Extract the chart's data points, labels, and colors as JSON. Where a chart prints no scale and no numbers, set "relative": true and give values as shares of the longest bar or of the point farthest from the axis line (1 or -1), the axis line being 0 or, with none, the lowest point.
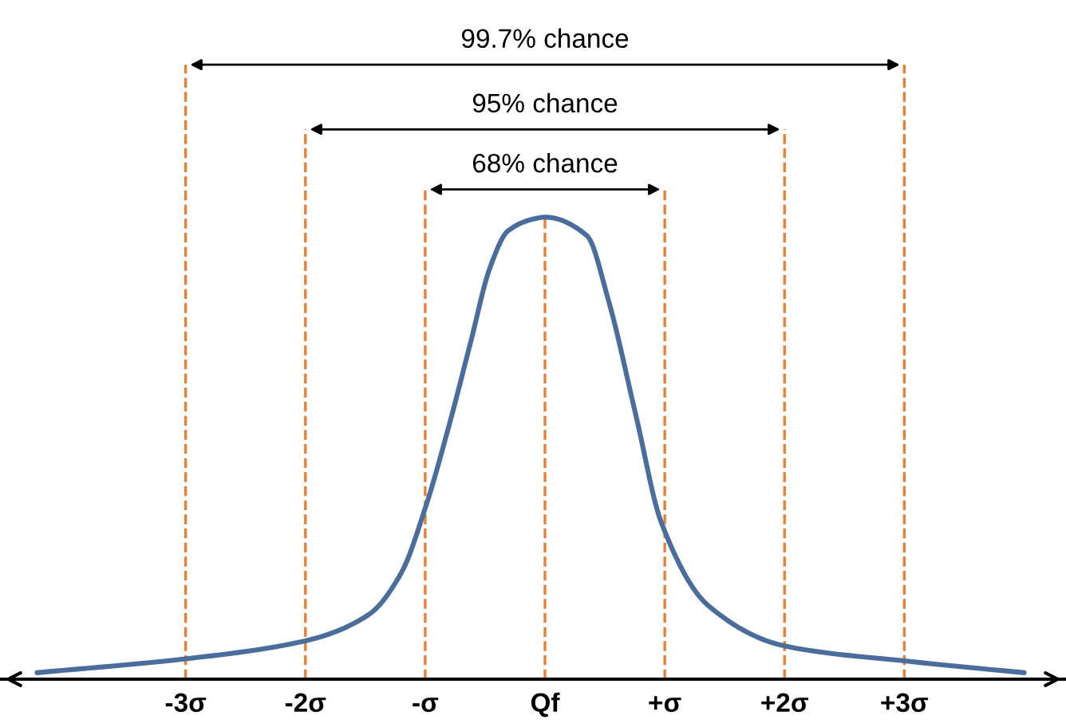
{
  "chart_data": {
    "type": "line",
    "relative": true,
    "x": [
      -4.24,
      -2.97,
      -2.0,
      -1.47,
      -1.2,
      -1.0,
      -0.8,
      -0.62,
      -0.46,
      -0.31,
      -0.08,
      0,
      0.35,
      0.53,
      0.76,
      0.97,
      1.36,
      2.0,
      3.06,
      4.0
    ],
    "series": [
      {
        "color": "#4a6d9c",
        "values": [
          0.014,
          0.045,
          0.083,
          0.14,
          0.23,
          0.37,
          0.55,
          0.73,
          0.89,
          0.97,
          0.997,
          1,
          0.96,
          0.82,
          0.57,
          0.34,
          0.16,
          0.072,
          0.038,
          0.014
        ]
      }
    ],
    "xlim": [
      -4.55,
      4.35
    ],
    "xticks": [
      {
        "value": -3,
        "label": "-3σ"
      },
      {
        "value": -2,
        "label": "-2σ"
      },
      {
        "value": -1,
        "label": "-σ"
      },
      {
        "value": 0,
        "label": "Qf"
      },
      {
        "value": 1,
        "label": "+σ"
      },
      {
        "value": 2,
        "label": "+2σ"
      },
      {
        "value": 3,
        "label": "+3σ"
      }
    ],
    "ref_lines": [
      {
        "axis": "x",
        "value": -3,
        "color": "#ed7d31",
        "line_style": "dashed"
      },
      {
        "axis": "x",
        "value": -2,
        "color": "#ed7d31",
        "line_style": "dashed"
      },
      {
        "axis": "x",
        "value": -1,
        "color": "#ed7d31",
        "line_style": "dashed"
      },
      {
        "axis": "x",
        "value": 0,
        "color": "#ed7d31",
        "line_style": "dashed"
      },
      {
        "axis": "x",
        "value": 1,
        "color": "#ed7d31",
        "line_style": "dashed"
      },
      {
        "axis": "x",
        "value": 2,
        "color": "#ed7d31",
        "line_style": "dashed"
      },
      {
        "axis": "x",
        "value": 3,
        "color": "#ed7d31",
        "line_style": "dashed"
      }
    ],
    "annotations": [
      "99.7% chance",
      "95% chance",
      "68% chance"
    ],
    "grid": false,
    "legend": false,
    "marker": "none",
    "line_style": "solid"
  }
}
